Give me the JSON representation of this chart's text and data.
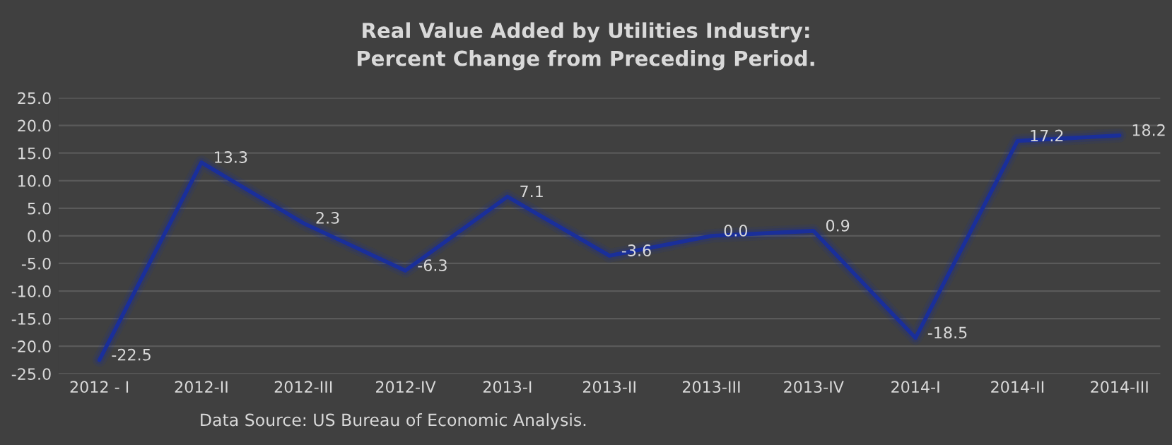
{
  "chart_data": {
    "type": "line",
    "title": "Real Value Added by Utilities Industry:\nPercent Change from Preceding Period.",
    "categories": [
      "2012 - I",
      "2012-II",
      "2012-III",
      "2012-IV",
      "2013-I",
      "2013-II",
      "2013-III",
      "2013-IV",
      "2014-I",
      "2014-II",
      "2014-III"
    ],
    "series": [
      {
        "color": "#1a2f9a",
        "values": [
          -22.5,
          13.3,
          2.3,
          -6.3,
          7.1,
          -3.6,
          0.0,
          0.9,
          -18.5,
          17.2,
          18.2
        ],
        "value_labels": [
          "-22.5",
          "13.3",
          "2.3",
          "-6.3",
          "7.1",
          "-3.6",
          "0.0",
          "0.9",
          "-18.5",
          "17.2",
          "18.2"
        ]
      }
    ],
    "ylim": [
      -25,
      25
    ],
    "yticks": [
      {
        "value": -25,
        "label": "-25.0"
      },
      {
        "value": -20,
        "label": "-20.0"
      },
      {
        "value": -15,
        "label": "-15.0"
      },
      {
        "value": -10,
        "label": "-10.0"
      },
      {
        "value": -5,
        "label": "-5.0"
      },
      {
        "value": 0,
        "label": "0.0"
      },
      {
        "value": 5,
        "label": "5.0"
      },
      {
        "value": 10,
        "label": "10.0"
      },
      {
        "value": 15,
        "label": "15.0"
      },
      {
        "value": 20,
        "label": "20.0"
      },
      {
        "value": 25,
        "label": "25.0"
      }
    ],
    "grid": "y",
    "marker": "none",
    "line_style": "solid",
    "annotations": [
      "Data Source: US Bureau of Economic Analysis."
    ]
  }
}
